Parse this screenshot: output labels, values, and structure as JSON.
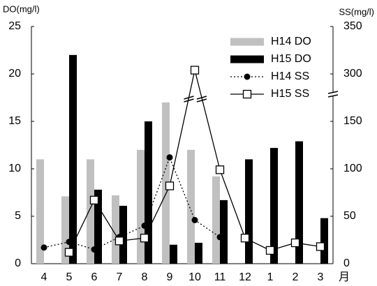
{
  "chart_data": {
    "type": "bar",
    "y_label": "DO(mg/l)",
    "y2_label": "SS(mg/l)",
    "x_label": "月",
    "categories": [
      "4",
      "5",
      "6",
      "7",
      "8",
      "9",
      "10",
      "11",
      "12",
      "1",
      "2",
      "3"
    ],
    "series": [
      {
        "name": "H14 DO",
        "type": "bar",
        "color": "#c0c0c0",
        "values": [
          11,
          7.1,
          11,
          7.2,
          12,
          17,
          12,
          9.2,
          null,
          null,
          null,
          null
        ]
      },
      {
        "name": "H15 DO",
        "type": "bar",
        "color": "#000000",
        "values": [
          null,
          22,
          7.8,
          6.1,
          15,
          2.0,
          2.2,
          6.7,
          11,
          12.2,
          12.9,
          4.8
        ]
      },
      {
        "name": "H14 SS",
        "type": "line",
        "axis": "y2",
        "color": "#000000",
        "line_style": "dotted",
        "marker": "circle",
        "values": [
          17,
          23,
          15,
          28,
          40,
          112,
          46,
          28,
          null,
          null,
          null,
          null
        ]
      },
      {
        "name": "H15 SS",
        "type": "line",
        "axis": "y2",
        "color": "#000000",
        "line_style": "solid",
        "marker": "square",
        "values": [
          null,
          12,
          67,
          24,
          27,
          82,
          304,
          99,
          27,
          14,
          22,
          18
        ]
      }
    ],
    "ylim": [
      0,
      25
    ],
    "yticks": [
      0,
      5,
      10,
      15,
      20,
      25
    ],
    "y2lim": [
      0,
      350
    ],
    "y2ticks": [
      0,
      50,
      100,
      150,
      300,
      350
    ],
    "y2_broken": true,
    "grid": false,
    "legend": "upper right"
  }
}
